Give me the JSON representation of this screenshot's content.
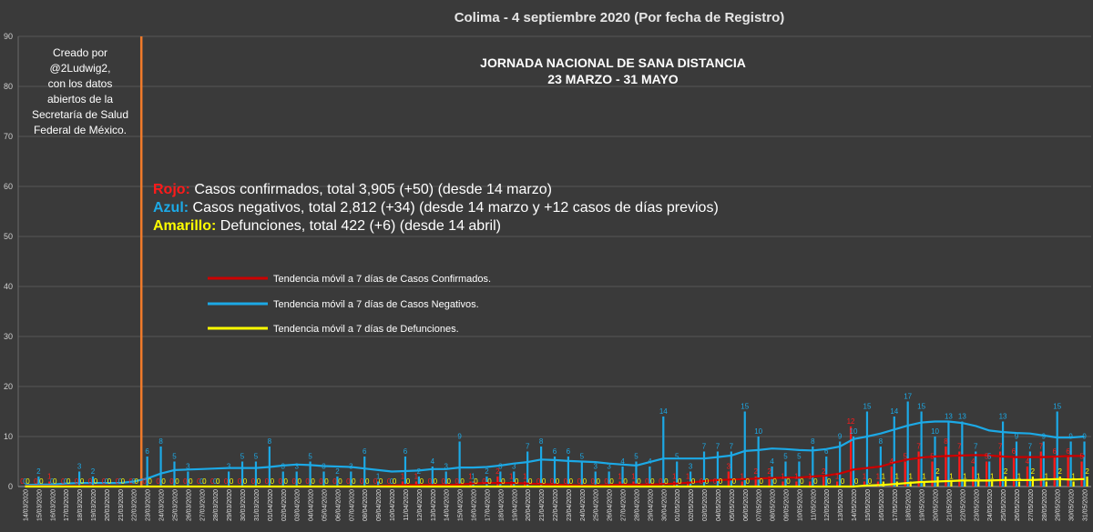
{
  "chart_data": {
    "type": "bar",
    "title": "Colima - 4 septiembre 2020 (Por fecha de Registro)",
    "ylim": [
      0,
      90
    ],
    "yticks": [
      0,
      10,
      20,
      30,
      40,
      50,
      60,
      70,
      80,
      90
    ],
    "grid": true,
    "credit": [
      "Creado por",
      "@2Ludwig2,",
      "con los datos",
      "abiertos de la",
      "Secretaría de Salud",
      "Federal de México."
    ],
    "annotation_box": {
      "title_line1": "JORNADA NACIONAL DE SANA DISTANCIA",
      "title_line2": "23 MARZO - 31 MAYO",
      "start_date": "23/03/2020",
      "end_date": "31/05/2020"
    },
    "legend_text": [
      {
        "key": "Rojo:",
        "text": " Casos confirmados, total 3,905 (+50) (desde 14 marzo)",
        "color": "#ff1a1a"
      },
      {
        "key": "Azul:",
        "text": " Casos negativos, total 2,812 (+34) (desde 14 marzo y +12 casos de días previos)",
        "color": "#1ca9e6"
      },
      {
        "key": "Amarillo:",
        "text": " Defunciones, total 422 (+6) (desde 14 abril)",
        "color": "#ffff00"
      }
    ],
    "trend_legend": [
      {
        "label": "Tendencia móvil a 7 días de Casos Confirmados.",
        "color": "#cc0000"
      },
      {
        "label": "Tendencia móvil a 7 días de Casos Negativos.",
        "color": "#1ca9e6"
      },
      {
        "label": "Tendencia móvil a 7 días de Defunciones.",
        "color": "#ffff00"
      }
    ],
    "colors": {
      "confirmed": "#ff1a1a",
      "negative": "#1ca9e6",
      "deaths": "#ffff00",
      "vline": "#f07a2a",
      "background": "#3a3a3a",
      "grid": "#555555"
    },
    "categories": [
      "14/03/2020",
      "15/03/2020",
      "16/03/2020",
      "17/03/2020",
      "18/03/2020",
      "19/03/2020",
      "20/03/2020",
      "21/03/2020",
      "22/03/2020",
      "23/03/2020",
      "24/03/2020",
      "25/03/2020",
      "26/03/2020",
      "27/03/2020",
      "28/03/2020",
      "29/03/2020",
      "30/03/2020",
      "31/03/2020",
      "01/04/2020",
      "02/04/2020",
      "03/04/2020",
      "04/04/2020",
      "05/04/2020",
      "06/04/2020",
      "07/04/2020",
      "08/04/2020",
      "09/04/2020",
      "10/04/2020",
      "11/04/2020",
      "12/04/2020",
      "13/04/2020",
      "14/04/2020",
      "15/04/2020",
      "16/04/2020",
      "17/04/2020",
      "18/04/2020",
      "19/04/2020",
      "20/04/2020",
      "21/04/2020",
      "22/04/2020",
      "23/04/2020",
      "24/04/2020",
      "25/04/2020",
      "26/04/2020",
      "27/04/2020",
      "28/04/2020",
      "29/04/2020",
      "30/04/2020",
      "01/05/2020",
      "02/05/2020",
      "03/05/2020",
      "04/05/2020",
      "05/05/2020",
      "06/05/2020",
      "07/05/2020",
      "08/05/2020",
      "09/05/2020",
      "10/05/2020",
      "11/05/2020",
      "12/05/2020",
      "13/05/2020",
      "14/05/2020",
      "15/05/2020",
      "16/05/2020",
      "17/05/2020",
      "18/05/2020",
      "19/05/2020",
      "20/05/2020",
      "21/05/2020",
      "22/05/2020",
      "23/05/2020",
      "24/05/2020",
      "25/05/2020",
      "26/05/2020",
      "27/05/2020",
      "28/05/2020",
      "29/05/2020",
      "30/05/2020",
      "31/05/2020"
    ],
    "series": [
      {
        "name": "confirmed",
        "values": [
          0,
          0,
          1,
          0,
          0,
          0,
          0,
          0,
          0,
          0,
          0,
          0,
          0,
          0,
          0,
          0,
          0,
          0,
          0,
          0,
          0,
          0,
          0,
          0,
          0,
          0,
          0,
          0,
          1,
          1,
          0,
          0,
          0,
          1,
          0,
          2,
          1,
          1,
          0,
          0,
          0,
          0,
          0,
          0,
          1,
          1,
          0,
          0,
          1,
          1,
          0,
          0,
          3,
          1,
          2,
          2,
          1,
          1,
          1,
          2,
          1,
          12,
          1,
          1,
          4,
          5,
          7,
          5,
          8,
          7,
          4,
          5,
          7,
          6,
          4,
          7,
          6,
          6,
          5
        ]
      },
      {
        "name": "negative",
        "values": [
          0,
          2,
          0,
          0,
          3,
          2,
          0,
          0,
          0,
          6,
          8,
          5,
          3,
          0,
          0,
          3,
          5,
          5,
          8,
          3,
          3,
          5,
          3,
          2,
          3,
          6,
          1,
          0,
          6,
          2,
          4,
          3,
          9,
          1,
          2,
          3,
          3,
          7,
          8,
          6,
          6,
          5,
          3,
          3,
          4,
          5,
          4,
          14,
          5,
          3,
          7,
          7,
          7,
          15,
          10,
          4,
          5,
          5,
          8,
          6,
          9,
          10,
          15,
          8,
          14,
          17,
          15,
          10,
          13,
          13,
          7,
          5,
          13,
          9,
          7,
          9,
          15,
          9,
          9
        ]
      },
      {
        "name": "deaths",
        "values": [
          0,
          0,
          0,
          0,
          0,
          0,
          0,
          0,
          0,
          0,
          0,
          0,
          0,
          0,
          0,
          0,
          0,
          0,
          0,
          0,
          0,
          0,
          0,
          0,
          0,
          0,
          0,
          0,
          0,
          0,
          0,
          0,
          0,
          0,
          0,
          0,
          0,
          0,
          0,
          0,
          0,
          0,
          0,
          0,
          0,
          0,
          0,
          0,
          0,
          0,
          0,
          0,
          0,
          0,
          0,
          0,
          0,
          0,
          0,
          0,
          0,
          0,
          0,
          1,
          1,
          1,
          1,
          2,
          1,
          1,
          1,
          1,
          2,
          1,
          2,
          1,
          2,
          1,
          2
        ]
      },
      {
        "name": "trend-confirmed",
        "values": [
          0.1,
          0.1,
          0.1,
          0.1,
          0.1,
          0.1,
          0.1,
          0,
          0,
          0,
          0,
          0,
          0,
          0,
          0,
          0,
          0,
          0,
          0,
          0,
          0,
          0,
          0,
          0,
          0,
          0,
          0.1,
          0.2,
          0.3,
          0.3,
          0.3,
          0.3,
          0.4,
          0.6,
          0.7,
          0.7,
          0.7,
          0.6,
          0.5,
          0.4,
          0.3,
          0.2,
          0.2,
          0.3,
          0.4,
          0.4,
          0.4,
          0.5,
          0.6,
          0.8,
          1.1,
          1.3,
          1.4,
          1.5,
          1.6,
          1.7,
          1.8,
          1.8,
          2.0,
          2.2,
          2.6,
          3.4,
          3.7,
          4.0,
          4.8,
          5.4,
          5.8,
          6.0,
          6.1,
          6.2,
          6.3,
          6.2,
          6.0,
          5.9,
          5.9,
          5.9,
          6.0,
          6.1,
          6.1
        ]
      },
      {
        "name": "trend-negative",
        "values": [
          0.3,
          0.4,
          0.4,
          0.6,
          0.7,
          0.7,
          0.7,
          0.7,
          1.0,
          1.6,
          2.6,
          3.3,
          3.4,
          3.5,
          3.6,
          3.7,
          3.7,
          3.7,
          3.9,
          4.2,
          4.4,
          4.3,
          4.1,
          4.0,
          3.9,
          3.6,
          3.3,
          3.0,
          3.1,
          3.2,
          3.5,
          3.5,
          3.8,
          3.8,
          3.9,
          4.2,
          4.6,
          4.9,
          5.4,
          5.3,
          5.1,
          5.0,
          4.9,
          4.6,
          4.4,
          4.2,
          4.9,
          5.6,
          5.6,
          5.6,
          5.6,
          5.9,
          6.2,
          7.1,
          7.3,
          7.6,
          7.5,
          7.3,
          7.2,
          7.5,
          8.0,
          9.5,
          10.0,
          10.6,
          11.4,
          12.2,
          12.8,
          13.0,
          13.0,
          12.7,
          12.1,
          11.2,
          10.9,
          10.7,
          10.6,
          10.2,
          9.8,
          9.8,
          10.0
        ]
      },
      {
        "name": "trend-deaths",
        "values": [
          0,
          0,
          0,
          0,
          0,
          0,
          0,
          0,
          0,
          0,
          0,
          0,
          0,
          0,
          0,
          0,
          0,
          0,
          0,
          0,
          0,
          0,
          0,
          0,
          0,
          0,
          0,
          0,
          0,
          0,
          0,
          0,
          0,
          0,
          0,
          0,
          0,
          0,
          0,
          0,
          0,
          0,
          0,
          0,
          0,
          0,
          0,
          0,
          0,
          0,
          0,
          0,
          0,
          0,
          0,
          0,
          0,
          0,
          0,
          0,
          0,
          0,
          0.2,
          0.3,
          0.5,
          0.7,
          0.9,
          1.0,
          1.1,
          1.2,
          1.2,
          1.2,
          1.3,
          1.3,
          1.3,
          1.4,
          1.5,
          1.4,
          1.5
        ]
      }
    ]
  }
}
